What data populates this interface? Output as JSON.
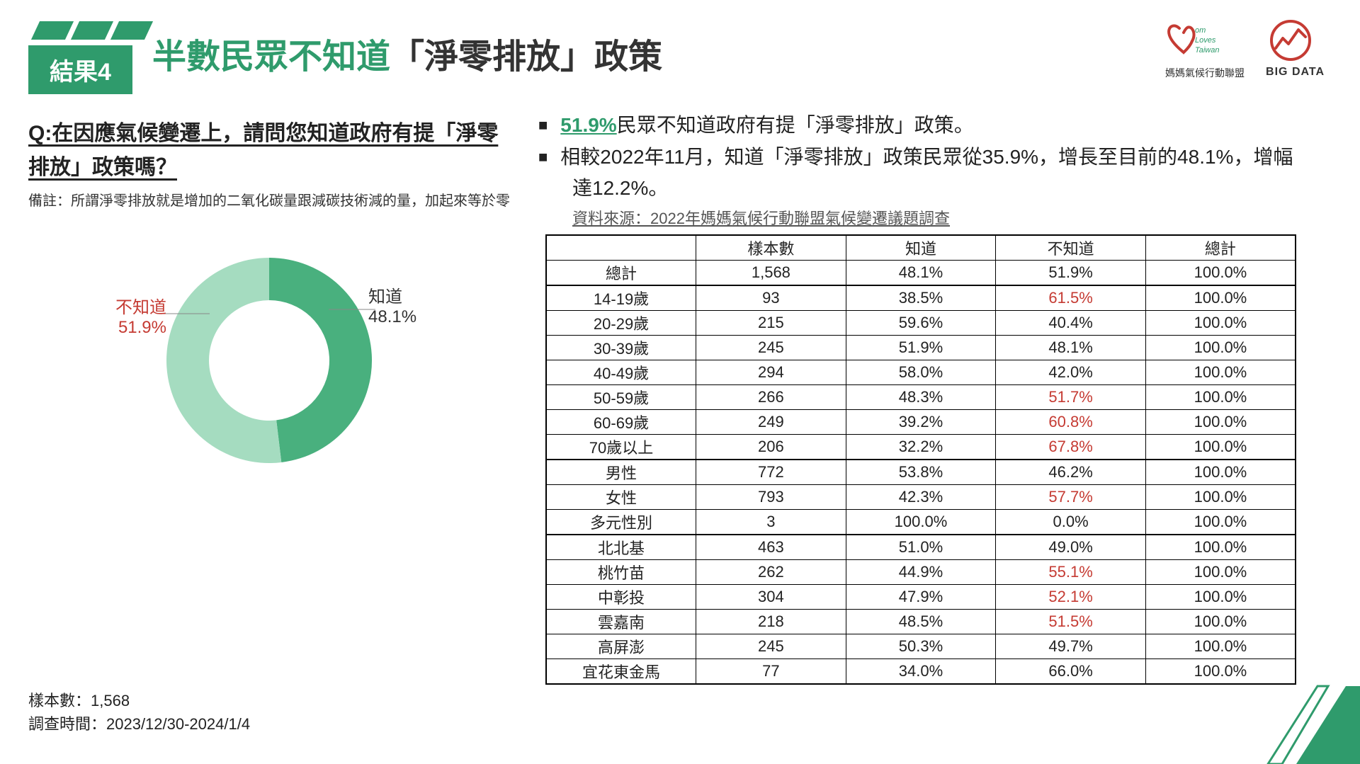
{
  "header": {
    "result_tag": "結果4",
    "title_green": "半數民眾不知道",
    "title_black": "「淨零排放」政策",
    "logo_mom_caption": "媽媽氣候行動聯盟",
    "logo_bd_caption": "BIG DATA",
    "accent_color": "#2f9b6c"
  },
  "left": {
    "question": "Q:在因應氣候變遷上，請問您知道政府有提「淨零排放」政策嗎？",
    "note": "備註：所謂淨零排放就是增加的二氧化碳量跟減碳技術減的量，加起來等於零"
  },
  "donut": {
    "type": "donut",
    "values": [
      48.1,
      51.9
    ],
    "labels": [
      "知道",
      "不知道"
    ],
    "colors": [
      "#49b07e",
      "#a5dcc0"
    ],
    "inner_radius": 85,
    "outer_radius": 145,
    "label_colors": [
      "#333333",
      "#c53b33"
    ],
    "label_know": "知道",
    "label_know_pct": "48.1%",
    "label_unknow": "不知道",
    "label_unknow_pct": "51.9%"
  },
  "meta": {
    "sample": "樣本數：1,568",
    "period": "調查時間：2023/12/30-2024/1/4"
  },
  "bullets": {
    "b1_hi": "51.9%",
    "b1_rest": "民眾不知道政府有提「淨零排放」政策。",
    "b2": "相較2022年11月，知道「淨零排放」政策民眾從35.9%，增長至目前的48.1%，增幅達12.2%。"
  },
  "source_line": "資料來源：2022年媽媽氣候行動聯盟氣候變遷議題調查",
  "table": {
    "columns": [
      "",
      "樣本數",
      "知道",
      "不知道",
      "總計"
    ],
    "col_widths": [
      "200px",
      "200px",
      "200px",
      "200px",
      "200px"
    ],
    "groups": [
      [
        {
          "label": "總計",
          "cells": [
            "1,568",
            "48.1%",
            "51.9%",
            "100.0%"
          ],
          "red": [
            false,
            false,
            false,
            false
          ]
        }
      ],
      [
        {
          "label": "14-19歲",
          "cells": [
            "93",
            "38.5%",
            "61.5%",
            "100.0%"
          ],
          "red": [
            false,
            false,
            true,
            false
          ]
        },
        {
          "label": "20-29歲",
          "cells": [
            "215",
            "59.6%",
            "40.4%",
            "100.0%"
          ],
          "red": [
            false,
            false,
            false,
            false
          ]
        },
        {
          "label": "30-39歲",
          "cells": [
            "245",
            "51.9%",
            "48.1%",
            "100.0%"
          ],
          "red": [
            false,
            false,
            false,
            false
          ]
        },
        {
          "label": "40-49歲",
          "cells": [
            "294",
            "58.0%",
            "42.0%",
            "100.0%"
          ],
          "red": [
            false,
            false,
            false,
            false
          ]
        },
        {
          "label": "50-59歲",
          "cells": [
            "266",
            "48.3%",
            "51.7%",
            "100.0%"
          ],
          "red": [
            false,
            false,
            true,
            false
          ]
        },
        {
          "label": "60-69歲",
          "cells": [
            "249",
            "39.2%",
            "60.8%",
            "100.0%"
          ],
          "red": [
            false,
            false,
            true,
            false
          ]
        },
        {
          "label": "70歲以上",
          "cells": [
            "206",
            "32.2%",
            "67.8%",
            "100.0%"
          ],
          "red": [
            false,
            false,
            true,
            false
          ]
        }
      ],
      [
        {
          "label": "男性",
          "cells": [
            "772",
            "53.8%",
            "46.2%",
            "100.0%"
          ],
          "red": [
            false,
            false,
            false,
            false
          ]
        },
        {
          "label": "女性",
          "cells": [
            "793",
            "42.3%",
            "57.7%",
            "100.0%"
          ],
          "red": [
            false,
            false,
            true,
            false
          ]
        },
        {
          "label": "多元性別",
          "cells": [
            "3",
            "100.0%",
            "0.0%",
            "100.0%"
          ],
          "red": [
            false,
            false,
            false,
            false
          ]
        }
      ],
      [
        {
          "label": "北北基",
          "cells": [
            "463",
            "51.0%",
            "49.0%",
            "100.0%"
          ],
          "red": [
            false,
            false,
            false,
            false
          ]
        },
        {
          "label": "桃竹苗",
          "cells": [
            "262",
            "44.9%",
            "55.1%",
            "100.0%"
          ],
          "red": [
            false,
            false,
            true,
            false
          ]
        },
        {
          "label": "中彰投",
          "cells": [
            "304",
            "47.9%",
            "52.1%",
            "100.0%"
          ],
          "red": [
            false,
            false,
            true,
            false
          ]
        },
        {
          "label": "雲嘉南",
          "cells": [
            "218",
            "48.5%",
            "51.5%",
            "100.0%"
          ],
          "red": [
            false,
            false,
            true,
            false
          ]
        },
        {
          "label": "高屏澎",
          "cells": [
            "245",
            "50.3%",
            "49.7%",
            "100.0%"
          ],
          "red": [
            false,
            false,
            false,
            false
          ]
        },
        {
          "label": "宜花東金馬",
          "cells": [
            "77",
            "34.0%",
            "66.0%",
            "100.0%"
          ],
          "red": [
            false,
            false,
            false,
            false
          ]
        }
      ]
    ]
  }
}
